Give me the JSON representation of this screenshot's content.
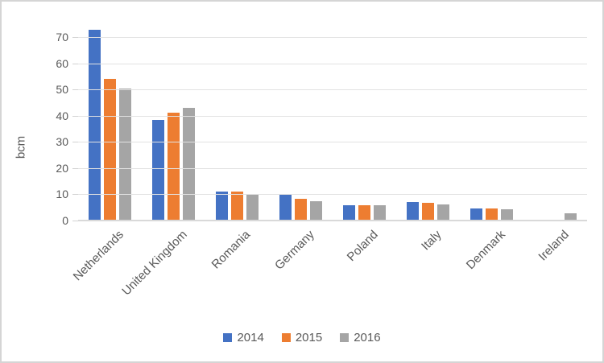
{
  "chart_data": {
    "type": "bar",
    "title": "",
    "xlabel": "",
    "ylabel": "bcm",
    "categories": [
      "Netherlands",
      "United Kingdom",
      "Romania",
      "Germany",
      "Poland",
      "Italy",
      "Denmark",
      "Ireland"
    ],
    "series": [
      {
        "name": "2014",
        "color": "#4472C4",
        "values": [
          73,
          38.5,
          11,
          10.2,
          6,
          7.2,
          4.6,
          0.3
        ]
      },
      {
        "name": "2015",
        "color": "#ED7D31",
        "values": [
          54,
          41.2,
          11.2,
          8.4,
          6,
          6.9,
          4.6,
          0.3
        ]
      },
      {
        "name": "2016",
        "color": "#A5A5A5",
        "values": [
          50.5,
          43,
          9.7,
          7.3,
          6,
          6.1,
          4.4,
          2.9
        ]
      }
    ],
    "ylim": [
      0,
      77.5
    ],
    "yticks": [
      0,
      10,
      20,
      30,
      40,
      50,
      60,
      70
    ],
    "grid": true,
    "legend_position": "bottom"
  },
  "colors": {
    "text": "#595959",
    "gridline": "#e2e2e2",
    "axis_line": "#d9d9d9",
    "frame_border": "#d5d5d5",
    "background": "#ffffff"
  }
}
